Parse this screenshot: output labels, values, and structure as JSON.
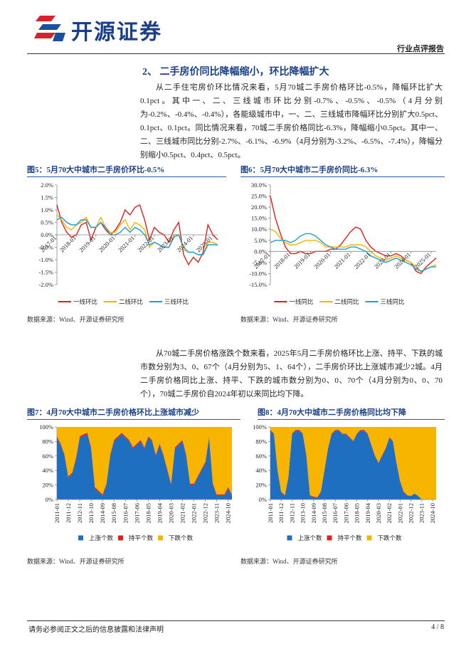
{
  "header": {
    "logo_text": "开源证券",
    "tag": "行业点评报告"
  },
  "section_title": "2、 二手房价同比降幅缩小，环比降幅扩大",
  "paragraphs": [
    "从二手住宅房价环比情况来看，5月70城二手房价格环比-0.5%，降幅环比扩大0.1pct。其中一、二、三线城市环比分别-0.7%、-0.5%、-0.5%（4月分别为-0.2%、-0.4%、-0.4%），各能级城市中，一、二、三线城市降幅环比分别扩大0.5pct、0.1pct、0.1pct。同比情况来看，70城二手房价格同比-6.3%，降幅缩小0.5pct。其中一、二、三线城市同比分别-2.7%、-6.1%、-6.9%（4月分别为-3.2%、-6.5%、-7.4%），降幅分别缩小0.5pct、0.4pct、0.5pct。",
    "从70城二手房价格涨跌个数来看，2025年5月二手房价格环比上涨、持平、下跌的城市数分别为3、0、67个（4月分别为5、1、64个），二手房价环比上涨城市减少2城。4月二手房价格同比上涨、持平、下跌的城市数分别为0、0、70个（4月分别为0、0、70个），70城二手房价自2024年初以来同比均下降。"
  ],
  "chart_data": [
    {
      "type": "line",
      "title": "图5：5月70大中城市二手房价环比-0.5%",
      "source": "数据来源：Wind、开源证券研究所",
      "categories": [
        "2017-01",
        null,
        null,
        null,
        "2018-01",
        null,
        null,
        null,
        "2019-01",
        null,
        null,
        null,
        "2020-01",
        null,
        null,
        null,
        "2021-01",
        null,
        null,
        null,
        "2022-01",
        null,
        null,
        null,
        "2023-01",
        null,
        null,
        null,
        "2024-01",
        null,
        null,
        null,
        "2025-01",
        null
      ],
      "series": [
        {
          "name": "一线环比",
          "color": "#e0201b",
          "values": [
            1.2,
            0.5,
            0.1,
            -0.1,
            0.0,
            0.4,
            0.5,
            -0.2,
            0.3,
            0.5,
            0.2,
            0.0,
            0.2,
            0.5,
            1.0,
            0.8,
            1.1,
            1.2,
            0.6,
            -0.2,
            0.3,
            0.1,
            0.0,
            -0.3,
            0.2,
            0.5,
            -0.8,
            -1.2,
            -0.9,
            -1.1,
            -0.7,
            0.4,
            0.0,
            -0.2
          ]
        },
        {
          "name": "二线环比",
          "color": "#f5b400",
          "values": [
            0.8,
            0.6,
            0.3,
            0.2,
            0.4,
            0.5,
            0.7,
            0.3,
            0.3,
            0.7,
            0.3,
            0.1,
            0.1,
            0.4,
            0.6,
            0.2,
            0.5,
            0.4,
            0.2,
            -0.5,
            -0.3,
            -0.4,
            -0.5,
            -0.5,
            0.0,
            0.0,
            -0.6,
            -0.7,
            -0.7,
            -0.8,
            -0.8,
            -0.3,
            -0.3,
            -0.4
          ]
        },
        {
          "name": "三线环比",
          "color": "#1e9fd8",
          "values": [
            0.6,
            0.7,
            0.5,
            0.4,
            0.4,
            0.6,
            0.6,
            0.3,
            0.3,
            0.5,
            0.3,
            0.0,
            0.0,
            0.1,
            0.3,
            0.1,
            0.3,
            0.2,
            0.0,
            -0.4,
            -0.3,
            -0.4,
            -0.5,
            -0.5,
            -0.1,
            0.0,
            -0.5,
            -0.7,
            -0.7,
            -0.8,
            -0.8,
            -0.4,
            -0.4,
            -0.4
          ]
        }
      ],
      "ylim": [
        -2,
        2
      ],
      "yticks": [
        {
          "value": 2,
          "label": "2.0%"
        },
        {
          "value": 1.5,
          "label": "1.5%"
        },
        {
          "value": 1,
          "label": "1.0%"
        },
        {
          "value": 0.5,
          "label": "0.5%"
        },
        {
          "value": 0,
          "label": "0.0%"
        },
        {
          "value": -0.5,
          "label": "-0.5%"
        },
        {
          "value": -1,
          "label": "-1.0%"
        },
        {
          "value": -1.5,
          "label": "-1.5%"
        },
        {
          "value": -2,
          "label": "-2.0%"
        }
      ],
      "grid": false,
      "legend": "bottom"
    },
    {
      "type": "line",
      "title": "图6：5月70大中城市二手房价同比-6.3%",
      "source": "数据来源：Wind、开源证券研究所",
      "categories": [
        "2017-01",
        null,
        null,
        null,
        "2018-01",
        null,
        null,
        null,
        "2019-01",
        null,
        null,
        null,
        "2020-01",
        null,
        null,
        null,
        "2021-01",
        null,
        null,
        null,
        "2022-01",
        null,
        null,
        null,
        "2023-01",
        null,
        null,
        null,
        "2024-01",
        null,
        null,
        null,
        "2025-01",
        null
      ],
      "series": [
        {
          "name": "一线同比",
          "color": "#e0201b",
          "values": [
            25,
            15,
            8,
            2,
            -1,
            -1,
            0,
            -1,
            -1,
            0,
            0,
            0,
            1,
            1,
            3,
            6,
            9,
            11,
            10,
            5,
            2,
            0,
            -1,
            -2,
            -2,
            -1,
            -2,
            -4,
            -5,
            -9,
            -10,
            -7,
            -5,
            -3
          ]
        },
        {
          "name": "二线同比",
          "color": "#f5b400",
          "values": [
            10,
            9,
            6,
            4,
            3,
            3,
            4,
            5,
            5,
            5,
            4,
            2,
            2,
            2,
            2,
            2,
            3,
            3,
            3,
            2,
            0,
            -2,
            -3,
            -4,
            -3,
            -2,
            -3,
            -4,
            -5,
            -7,
            -9,
            -8,
            -7,
            -6
          ]
        },
        {
          "name": "三线同比",
          "color": "#1e9fd8",
          "values": [
            4,
            5,
            5,
            5,
            4,
            5,
            7,
            8,
            8,
            7,
            5,
            3,
            2,
            1,
            1,
            1,
            2,
            2,
            1,
            0,
            -2,
            -3,
            -4,
            -5,
            -4,
            -3,
            -4,
            -5,
            -6,
            -8,
            -9,
            -8,
            -7,
            -7
          ]
        }
      ],
      "ylim": [
        -15,
        30
      ],
      "yticks": [
        {
          "value": 30,
          "label": "30.0%"
        },
        {
          "value": 25,
          "label": "25.0%"
        },
        {
          "value": 20,
          "label": "20.0%"
        },
        {
          "value": 15,
          "label": "15.0%"
        },
        {
          "value": 10,
          "label": "10.0%"
        },
        {
          "value": 5,
          "label": "5.0%"
        },
        {
          "value": 0,
          "label": "0.0%"
        },
        {
          "value": -5,
          "label": "-5.0%"
        },
        {
          "value": -10,
          "label": "-10.0%"
        },
        {
          "value": -15,
          "label": "-15.0%"
        }
      ],
      "grid": false,
      "legend": "bottom"
    },
    {
      "type": "area",
      "stacked": true,
      "title": "图7：4月70大中城市二手房价格环比上涨城市减少",
      "source": "数据来源：Wind、开源证券研究所",
      "categories": [
        "2011-01",
        null,
        null,
        "2011-12",
        null,
        null,
        "2012-11",
        null,
        null,
        "2013-10",
        null,
        null,
        "2014-09",
        null,
        null,
        "2015-08",
        null,
        null,
        "2016-07",
        null,
        null,
        "2017-06",
        null,
        null,
        "2018-05",
        null,
        null,
        "2019-04",
        null,
        null,
        "2020-03",
        null,
        null,
        "2021-02",
        null,
        null,
        "2022-01",
        null,
        null,
        "2022-12",
        null,
        null,
        "2023-11",
        null,
        null,
        "2024-10",
        null
      ],
      "series": [
        {
          "name": "上涨个数",
          "color": "#1f6fc0",
          "values": [
            85,
            75,
            60,
            30,
            35,
            55,
            85,
            88,
            90,
            70,
            15,
            10,
            5,
            20,
            60,
            80,
            85,
            90,
            85,
            80,
            70,
            75,
            80,
            70,
            85,
            80,
            60,
            75,
            60,
            40,
            20,
            70,
            75,
            80,
            60,
            20,
            20,
            30,
            40,
            50,
            85,
            20,
            5,
            5,
            5,
            15,
            5
          ]
        },
        {
          "name": "持平个数",
          "color": "#e02020",
          "values": [
            2,
            2,
            2,
            2,
            2,
            2,
            2,
            2,
            2,
            2,
            2,
            2,
            2,
            2,
            2,
            2,
            2,
            2,
            2,
            2,
            2,
            2,
            2,
            2,
            2,
            2,
            2,
            2,
            2,
            2,
            2,
            2,
            2,
            2,
            2,
            2,
            2,
            2,
            2,
            2,
            2,
            2,
            2,
            2,
            2,
            2,
            2
          ]
        },
        {
          "name": "下跌个数",
          "color": "#f7b500",
          "values": [
            13,
            23,
            38,
            68,
            63,
            43,
            13,
            10,
            8,
            28,
            83,
            88,
            93,
            78,
            38,
            18,
            13,
            8,
            13,
            18,
            28,
            23,
            18,
            28,
            13,
            18,
            38,
            23,
            38,
            58,
            78,
            28,
            23,
            18,
            38,
            78,
            78,
            68,
            58,
            48,
            13,
            78,
            93,
            93,
            93,
            83,
            93
          ]
        }
      ],
      "ylim": [
        0,
        100
      ],
      "yticks": [
        {
          "value": 0,
          "label": "0%"
        },
        {
          "value": 20,
          "label": "20%"
        },
        {
          "value": 40,
          "label": "40%"
        },
        {
          "value": 60,
          "label": "60%"
        },
        {
          "value": 80,
          "label": "80%"
        },
        {
          "value": 100,
          "label": "100%"
        }
      ],
      "grid": false,
      "legend": "bottom"
    },
    {
      "type": "area",
      "stacked": true,
      "title": "图8：4月70大中城市二手房价格同比均下降",
      "source": "数据来源：Wind、开源证券研究所",
      "categories": [
        "2011-01",
        null,
        null,
        "2011-12",
        null,
        null,
        "2012-11",
        null,
        null,
        "2013-10",
        null,
        null,
        "2014-09",
        null,
        null,
        "2015-08",
        null,
        null,
        "2016-07",
        null,
        null,
        "2017-06",
        null,
        null,
        "2018-05",
        null,
        null,
        "2019-04",
        null,
        null,
        "2020-03",
        null,
        null,
        "2021-02",
        null,
        null,
        "2022-01",
        null,
        null,
        "2022-12",
        null,
        null,
        "2023-11",
        null,
        null,
        "2024-10",
        null
      ],
      "series": [
        {
          "name": "上涨个数",
          "color": "#1f6fc0",
          "values": [
            95,
            90,
            40,
            10,
            5,
            30,
            90,
            95,
            95,
            90,
            60,
            5,
            3,
            2,
            10,
            40,
            70,
            90,
            95,
            95,
            90,
            90,
            85,
            80,
            90,
            95,
            95,
            90,
            75,
            60,
            50,
            60,
            70,
            85,
            80,
            50,
            25,
            10,
            5,
            5,
            8,
            5,
            0,
            0,
            0,
            0,
            0
          ]
        },
        {
          "name": "持平个数",
          "color": "#e02020",
          "values": [
            1,
            1,
            1,
            1,
            1,
            1,
            1,
            1,
            1,
            1,
            1,
            1,
            1,
            1,
            1,
            1,
            1,
            1,
            1,
            1,
            1,
            1,
            1,
            1,
            1,
            1,
            1,
            1,
            1,
            1,
            1,
            1,
            1,
            1,
            1,
            1,
            1,
            1,
            1,
            0,
            0,
            0,
            0,
            0,
            0,
            0,
            0
          ]
        },
        {
          "name": "下跌个数",
          "color": "#f7b500",
          "values": [
            4,
            9,
            59,
            89,
            94,
            69,
            9,
            4,
            4,
            9,
            39,
            94,
            96,
            97,
            89,
            59,
            29,
            9,
            4,
            4,
            9,
            9,
            14,
            19,
            9,
            4,
            4,
            9,
            24,
            39,
            49,
            39,
            29,
            14,
            19,
            49,
            74,
            89,
            94,
            95,
            92,
            95,
            100,
            100,
            100,
            100,
            100
          ]
        }
      ],
      "ylim": [
        0,
        100
      ],
      "yticks": [
        {
          "value": 0,
          "label": "0%"
        },
        {
          "value": 20,
          "label": "20%"
        },
        {
          "value": 40,
          "label": "40%"
        },
        {
          "value": 60,
          "label": "60%"
        },
        {
          "value": 80,
          "label": "80%"
        },
        {
          "value": 100,
          "label": "100%"
        }
      ],
      "grid": false,
      "legend": "bottom"
    }
  ],
  "footer": {
    "disclaimer": "请务必参阅正文之后的信息披露和法律声明",
    "page": "4 / 8"
  }
}
